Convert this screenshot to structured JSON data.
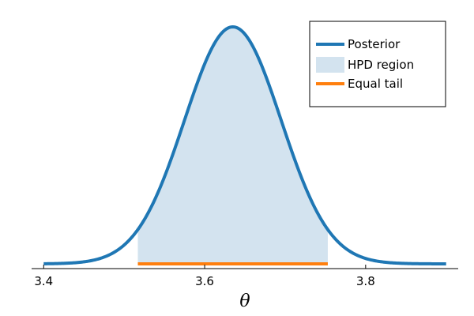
{
  "chart_data": {
    "type": "area",
    "xlabel": "θ",
    "ylabel": "",
    "xlim": [
      3.385,
      3.915
    ],
    "ylim": [
      -0.02,
      1.08
    ],
    "x_ticks": [
      3.4,
      3.6,
      3.8
    ],
    "x_tick_labels": [
      "3.4",
      "3.6",
      "3.8"
    ],
    "grid": false,
    "legend_position": "top-right",
    "colors": {
      "posterior": "#1f77b4",
      "hpd_fill": "#d3e3ef",
      "equal_tail": "#ff7f0e"
    },
    "posterior": {
      "name": "Posterior",
      "mean": 3.635,
      "sd": 0.06,
      "x_range": [
        3.4,
        3.9
      ],
      "peak_value": 1.0
    },
    "hpd_region": {
      "name": "HPD region",
      "x_range": [
        3.517,
        3.753
      ]
    },
    "equal_tail": {
      "name": "Equal tail",
      "x_range": [
        3.517,
        3.753
      ],
      "y": 0.0
    }
  },
  "legend": {
    "items": [
      {
        "label": "Posterior",
        "kind": "line",
        "color": "#1f77b4"
      },
      {
        "label": "HPD region",
        "kind": "patch",
        "color": "#d3e3ef"
      },
      {
        "label": "Equal tail",
        "kind": "line",
        "color": "#ff7f0e"
      }
    ]
  }
}
